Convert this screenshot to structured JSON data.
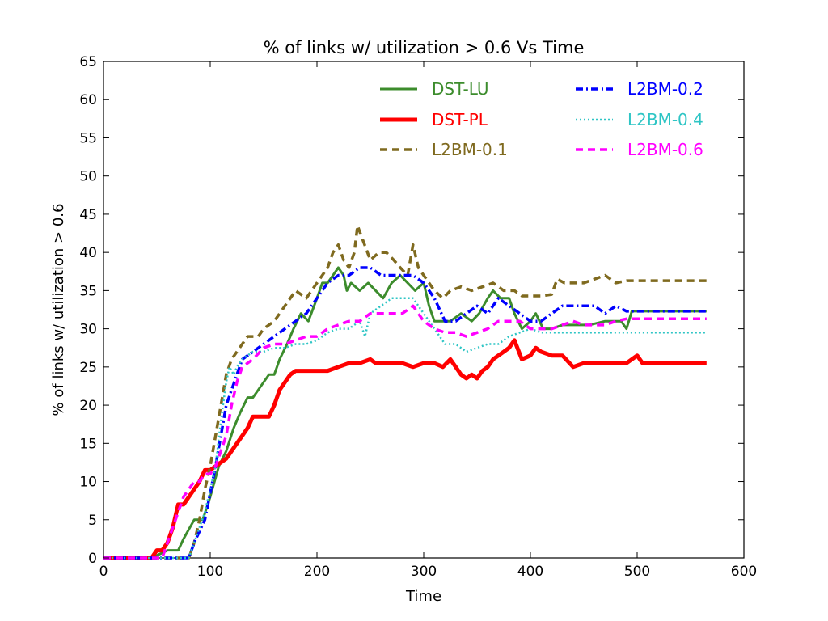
{
  "chart_data": {
    "type": "line",
    "title": "% of links w/ utilization > 0.6 Vs Time",
    "xlabel": "Time",
    "ylabel": "% of links w/ utilization > 0.6",
    "xlim": [
      0,
      600
    ],
    "ylim": [
      0,
      65
    ],
    "xticks": [
      "0",
      "100",
      "200",
      "300",
      "400",
      "500",
      "600"
    ],
    "yticks": [
      "0",
      "5",
      "10",
      "15",
      "20",
      "25",
      "30",
      "35",
      "40",
      "45",
      "50",
      "55",
      "60",
      "65"
    ],
    "grid": false,
    "legend_position": "top-right",
    "series": [
      {
        "name": "DST-LU",
        "color": "#3c8c2c",
        "style": "solid",
        "x": [
          0,
          45,
          60,
          70,
          75,
          85,
          93,
          100,
          108,
          115,
          122,
          128,
          135,
          140,
          145,
          150,
          155,
          160,
          165,
          172,
          178,
          185,
          192,
          200,
          205,
          210,
          215,
          220,
          225,
          228,
          232,
          240,
          248,
          255,
          262,
          270,
          278,
          285,
          292,
          300,
          305,
          310,
          318,
          325,
          335,
          345,
          352,
          360,
          365,
          372,
          380,
          385,
          392,
          400,
          405,
          412,
          420,
          430,
          440,
          455,
          470,
          480,
          485,
          490,
          495,
          565
        ],
        "y": [
          0,
          0,
          1,
          1,
          2.5,
          5,
          5,
          8,
          12,
          14,
          17,
          19,
          21,
          21,
          22,
          23,
          24,
          24,
          26,
          28,
          30,
          32,
          31,
          34,
          36,
          36,
          37,
          38,
          37,
          35,
          36,
          35,
          36,
          35,
          34,
          36,
          37,
          36,
          35,
          36,
          33,
          31,
          31,
          31,
          32,
          31,
          32,
          34,
          35,
          34,
          34,
          32,
          30,
          31,
          32,
          30,
          30,
          30.5,
          30.5,
          30.5,
          31,
          31,
          31,
          30,
          32.3,
          32.3
        ]
      },
      {
        "name": "DST-PL",
        "color": "#ff0000",
        "style": "thick",
        "x": [
          0,
          45,
          50,
          55,
          60,
          65,
          70,
          75,
          80,
          85,
          90,
          95,
          100,
          105,
          110,
          115,
          120,
          125,
          130,
          135,
          140,
          145,
          150,
          155,
          160,
          165,
          170,
          175,
          180,
          190,
          200,
          210,
          220,
          230,
          240,
          250,
          255,
          265,
          280,
          290,
          300,
          310,
          318,
          325,
          330,
          335,
          340,
          345,
          350,
          355,
          360,
          365,
          370,
          375,
          380,
          385,
          392,
          400,
          405,
          410,
          420,
          430,
          440,
          450,
          470,
          490,
          500,
          505,
          510,
          565
        ],
        "y": [
          0,
          0,
          1,
          1,
          2,
          4,
          7,
          7,
          8,
          9,
          10,
          11.5,
          11.5,
          12,
          12.5,
          13,
          14,
          15,
          16,
          17,
          18.5,
          18.5,
          18.5,
          18.5,
          20,
          22,
          23,
          24,
          24.5,
          24.5,
          24.5,
          24.5,
          25,
          25.5,
          25.5,
          26,
          25.5,
          25.5,
          25.5,
          25,
          25.5,
          25.5,
          25,
          26,
          25,
          24,
          23.5,
          24,
          23.5,
          24.5,
          25,
          26,
          26.5,
          27,
          27.5,
          28.5,
          26,
          26.5,
          27.5,
          27,
          26.5,
          26.5,
          25,
          25.5,
          25.5,
          25.5,
          26.5,
          25.5,
          25.5,
          25.5
        ]
      },
      {
        "name": "L2BM-0.1",
        "color": "#7f6a1f",
        "style": "dashed",
        "x": [
          0,
          80,
          85,
          90,
          95,
          100,
          105,
          110,
          115,
          120,
          125,
          130,
          135,
          140,
          145,
          150,
          160,
          170,
          180,
          190,
          200,
          205,
          210,
          215,
          220,
          225,
          230,
          235,
          238,
          242,
          250,
          258,
          265,
          272,
          278,
          285,
          290,
          295,
          300,
          305,
          310,
          318,
          325,
          335,
          345,
          355,
          365,
          375,
          385,
          392,
          400,
          410,
          420,
          425,
          432,
          440,
          450,
          460,
          470,
          480,
          490,
          565
        ],
        "y": [
          0,
          0,
          2,
          5,
          9,
          12,
          16,
          20,
          24,
          26,
          27,
          28,
          29,
          29,
          29,
          30,
          31,
          33,
          35,
          34,
          36,
          37,
          38,
          40,
          41,
          39,
          38,
          40,
          43.5,
          42,
          39,
          40,
          40,
          39,
          38,
          37,
          41,
          38,
          37,
          36,
          35,
          34,
          35,
          35.5,
          35,
          35.5,
          36,
          35,
          35,
          34.3,
          34.3,
          34.3,
          34.5,
          36.5,
          36,
          36,
          36,
          36.5,
          37,
          36,
          36.3,
          36.3
        ]
      },
      {
        "name": "L2BM-0.2",
        "color": "#0000ff",
        "style": "dashdot",
        "x": [
          0,
          80,
          85,
          95,
          105,
          110,
          115,
          120,
          125,
          130,
          140,
          150,
          160,
          170,
          180,
          190,
          200,
          210,
          220,
          230,
          240,
          250,
          260,
          270,
          280,
          290,
          300,
          310,
          320,
          330,
          340,
          350,
          360,
          370,
          380,
          390,
          400,
          410,
          420,
          430,
          440,
          450,
          460,
          470,
          480,
          490,
          565
        ],
        "y": [
          0,
          0,
          2,
          5,
          12,
          16,
          20,
          22,
          24,
          26,
          27,
          28,
          29,
          30,
          31,
          32,
          34,
          36,
          37,
          37,
          38,
          38,
          37,
          37,
          37,
          37,
          36,
          34,
          31,
          31,
          32,
          33,
          32,
          34,
          33,
          32,
          31,
          31,
          32,
          33,
          33,
          33,
          33,
          32,
          33,
          32.3,
          32.3
        ]
      },
      {
        "name": "L2BM-0.4",
        "color": "#2ec5c5",
        "style": "dotted",
        "x": [
          0,
          80,
          85,
          95,
          105,
          110,
          115,
          118,
          122,
          125,
          130,
          140,
          150,
          160,
          170,
          180,
          190,
          200,
          210,
          220,
          230,
          240,
          245,
          250,
          260,
          270,
          280,
          290,
          300,
          310,
          320,
          330,
          340,
          350,
          360,
          370,
          380,
          390,
          400,
          410,
          420,
          430,
          440,
          450,
          460,
          470,
          480,
          490,
          565
        ],
        "y": [
          0,
          0,
          2,
          6,
          12,
          18,
          23,
          25,
          24,
          25,
          26,
          27,
          27,
          27.5,
          27.5,
          28,
          28,
          28.5,
          29.5,
          30,
          30,
          31,
          29,
          32,
          33,
          34,
          34,
          34,
          32,
          30,
          28,
          28,
          27,
          27.5,
          28,
          28,
          29,
          29.5,
          30,
          29.5,
          29.5,
          29.5,
          29.5,
          29.5,
          29.5,
          29.5,
          29.5,
          29.5,
          29.5
        ]
      },
      {
        "name": "L2BM-0.6",
        "color": "#ff00ff",
        "style": "dashed",
        "x": [
          0,
          55,
          60,
          65,
          70,
          75,
          80,
          85,
          90,
          95,
          100,
          105,
          110,
          115,
          120,
          125,
          130,
          140,
          150,
          160,
          170,
          180,
          190,
          200,
          210,
          220,
          230,
          240,
          250,
          260,
          270,
          280,
          290,
          300,
          310,
          320,
          330,
          340,
          350,
          360,
          370,
          380,
          390,
          400,
          410,
          420,
          430,
          440,
          450,
          460,
          470,
          480,
          490,
          565
        ],
        "y": [
          0,
          0,
          2,
          4,
          6,
          8,
          9,
          10,
          10,
          11,
          11,
          12,
          14,
          16,
          20,
          23,
          25,
          26,
          27.5,
          28,
          28,
          28.5,
          29,
          29,
          30,
          30.5,
          31,
          31,
          32,
          32,
          32,
          32,
          33,
          31,
          30,
          29.5,
          29.5,
          29,
          29.5,
          30,
          31,
          31,
          31,
          30,
          30,
          30,
          30.5,
          31,
          30.5,
          30.5,
          30.5,
          31,
          31.3,
          31.3
        ]
      }
    ]
  }
}
